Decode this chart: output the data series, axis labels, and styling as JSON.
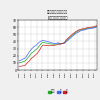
{
  "title_line1": "大学・短期大学への進学率",
  "title_line2": "(過年度高卒者含む。％）",
  "background_color": "#f0f0f0",
  "plot_bg_color": "#ffffff",
  "grid_color": "#bbbbbb",
  "line_colors": [
    "#22aa22",
    "#4466ff",
    "#cc2222"
  ],
  "legend_labels": [
    "男女計",
    "男",
    "女"
  ],
  "ylim": [
    0,
    70
  ],
  "yticks": [
    0,
    10,
    20,
    30,
    40,
    50,
    60,
    70
  ],
  "year_start": 1954,
  "year_end": 2022,
  "years_full": [
    1955,
    1956,
    1957,
    1958,
    1959,
    1960,
    1961,
    1962,
    1963,
    1964,
    1965,
    1966,
    1967,
    1968,
    1969,
    1970,
    1971,
    1972,
    1973,
    1974,
    1975,
    1976,
    1977,
    1978,
    1979,
    1980,
    1981,
    1982,
    1983,
    1984,
    1985,
    1986,
    1987,
    1988,
    1989,
    1990,
    1991,
    1992,
    1993,
    1994,
    1995,
    1996,
    1997,
    1998,
    1999,
    2000,
    2001,
    2002,
    2003,
    2004,
    2005,
    2006,
    2007,
    2008,
    2009,
    2010,
    2011,
    2012,
    2013,
    2014,
    2015,
    2016,
    2017,
    2018,
    2019,
    2020,
    2021,
    2022
  ],
  "total_vals": [
    10.1,
    10.3,
    10.8,
    11.5,
    12.0,
    12.5,
    14.0,
    16.0,
    18.0,
    20.0,
    22.5,
    24.0,
    25.0,
    26.5,
    28.0,
    29.2,
    31.0,
    33.0,
    35.0,
    37.0,
    38.4,
    38.6,
    38.0,
    37.8,
    37.5,
    37.4,
    36.8,
    36.5,
    36.3,
    36.2,
    36.1,
    36.2,
    36.4,
    36.7,
    37.0,
    36.3,
    36.5,
    37.0,
    37.4,
    38.0,
    40.0,
    41.5,
    43.0,
    44.5,
    46.0,
    47.5,
    49.0,
    50.0,
    51.5,
    52.8,
    53.5,
    54.5,
    55.3,
    56.0,
    56.5,
    56.8,
    57.0,
    57.5,
    58.0,
    58.4,
    58.6,
    58.8,
    59.0,
    59.2,
    59.5,
    60.0,
    60.5,
    61.5
  ],
  "male_vals": [
    13.0,
    13.5,
    14.0,
    15.0,
    15.8,
    16.5,
    18.5,
    21.0,
    23.5,
    26.0,
    28.0,
    30.0,
    31.5,
    33.0,
    34.0,
    35.2,
    37.0,
    38.5,
    39.5,
    40.5,
    41.3,
    41.2,
    40.8,
    40.5,
    40.0,
    39.8,
    39.0,
    38.5,
    38.0,
    37.5,
    37.0,
    37.2,
    37.5,
    37.8,
    38.0,
    36.3,
    36.5,
    37.0,
    37.0,
    37.5,
    39.0,
    40.0,
    41.5,
    43.0,
    44.5,
    46.0,
    47.5,
    48.8,
    50.0,
    51.5,
    52.0,
    53.0,
    54.0,
    55.0,
    55.5,
    55.8,
    56.0,
    56.5,
    57.0,
    57.5,
    57.8,
    58.0,
    58.2,
    58.5,
    58.8,
    59.0,
    59.5,
    60.5
  ],
  "female_vals": [
    5.0,
    5.2,
    5.5,
    5.8,
    6.0,
    6.5,
    8.0,
    10.0,
    11.5,
    13.0,
    15.5,
    17.0,
    18.0,
    19.5,
    21.0,
    22.5,
    24.0,
    26.5,
    29.0,
    32.0,
    34.0,
    35.0,
    34.5,
    34.5,
    34.5,
    34.5,
    34.0,
    34.0,
    34.0,
    34.5,
    34.5,
    34.8,
    35.0,
    35.5,
    36.0,
    36.4,
    36.5,
    37.0,
    37.8,
    38.5,
    41.0,
    43.0,
    44.5,
    46.0,
    47.5,
    49.0,
    50.5,
    51.5,
    53.0,
    54.0,
    54.8,
    56.0,
    56.5,
    57.0,
    57.5,
    57.8,
    58.0,
    58.5,
    59.0,
    59.5,
    59.5,
    59.8,
    60.0,
    60.2,
    60.5,
    61.0,
    61.5,
    62.5
  ]
}
